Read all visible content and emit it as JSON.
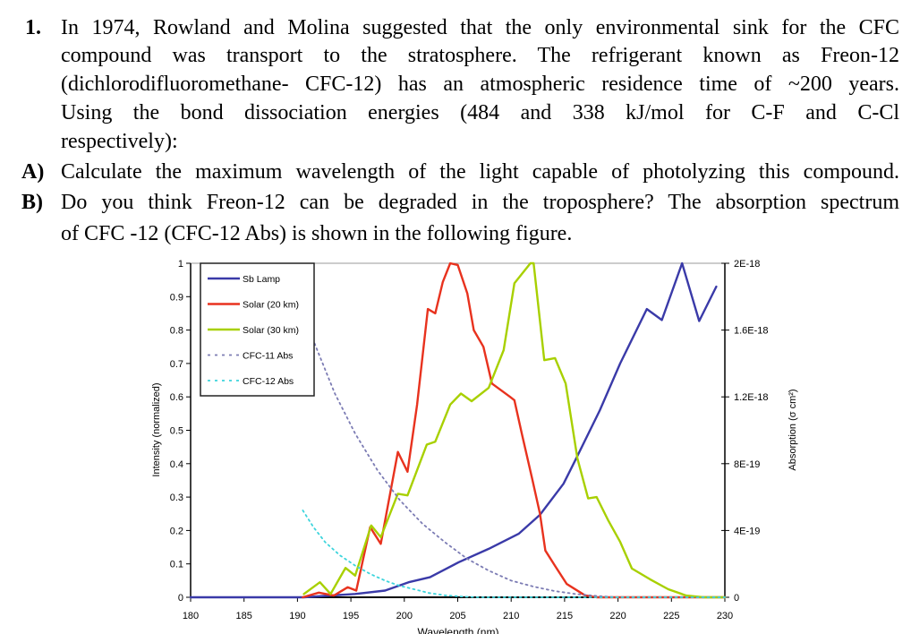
{
  "question": {
    "number": "1.",
    "intro_lines": [
      "In 1974, Rowland and Molina suggested that the only environmental sink for the CFC",
      "compound was transport to the stratosphere. The refrigerant known as Freon-12",
      "(dichlorodifluoromethane- CFC-12) has an atmospheric residence time of ~200 years.",
      "Using the bond dissociation energies (484 and 338 kJ/mol for C-F and C-Cl",
      "respectively):"
    ],
    "part_a_label": "A)",
    "part_a_lines": [
      "Calculate the maximum wavelength of the light capable of photolyzing this compound."
    ],
    "part_b_label": "B)",
    "part_b_lines": [
      "Do you think Freon-12 can be degraded in the troposphere? The absorption spectrum",
      "of CFC -12 (CFC-12 Abs) is shown in the following figure."
    ]
  },
  "chart_data": {
    "type": "line",
    "title": "",
    "xlabel": "Wavelength (nm)",
    "ylabel": "Intensity (normalized)",
    "y2label": "Absorption (σ cm²)",
    "xlim": [
      180,
      230
    ],
    "ylim": [
      0,
      1
    ],
    "y2lim": [
      0,
      2e-18
    ],
    "xticks": [
      "180",
      "185",
      "190",
      "195",
      "200",
      "205",
      "210",
      "215",
      "220",
      "225",
      "230"
    ],
    "yticks": [
      "0",
      "0.1",
      "0.2",
      "0.3",
      "0.4",
      "0.5",
      "0.6",
      "0.7",
      "0.8",
      "0.9",
      "1"
    ],
    "y2ticks": [
      "0",
      "4E-19",
      "8E-19",
      "1.2E-18",
      "1.6E-18",
      "2E-18"
    ],
    "grid": false,
    "legend_placement": "top-left",
    "series": [
      {
        "name": "Sb Lamp",
        "axis": "left",
        "color": "#3a3aa8",
        "style": "solid",
        "x": [
          180,
          190,
          190.6,
          195.4,
          198.2,
          200.4,
          202.4,
          205.1,
          207.9,
          210.7,
          212.7,
          214.9,
          216,
          218.3,
          220.2,
          222.7,
          224.1,
          226,
          227.6,
          229.2
        ],
        "y": [
          0,
          0,
          0,
          0.01,
          0.02,
          0.045,
          0.06,
          0.105,
          0.145,
          0.19,
          0.247,
          0.34,
          0.41,
          0.56,
          0.7,
          0.863,
          0.83,
          1.0,
          0.827,
          0.93
        ]
      },
      {
        "name": "Solar (20 km)",
        "axis": "left",
        "color": "#e8321e",
        "style": "solid",
        "x": [
          190.5,
          192,
          193.4,
          194.7,
          195.5,
          196.8,
          197.8,
          199.4,
          200.3,
          201.2,
          202.2,
          202.9,
          203.6,
          204.3,
          205,
          205.9,
          206.5,
          207.4,
          208.2,
          209.9,
          210.3,
          211,
          212,
          212.7,
          213.2,
          214.1,
          215.2,
          216.9,
          218,
          230
        ],
        "y": [
          0,
          0.014,
          0.005,
          0.03,
          0.02,
          0.21,
          0.16,
          0.435,
          0.376,
          0.577,
          0.863,
          0.85,
          0.944,
          1.0,
          0.995,
          0.91,
          0.8,
          0.75,
          0.64,
          0.6,
          0.59,
          0.49,
          0.35,
          0.25,
          0.14,
          0.094,
          0.04,
          0.006,
          0,
          0
        ]
      },
      {
        "name": "Solar (30 km)",
        "axis": "left",
        "color": "#a8d000",
        "style": "solid",
        "x": [
          190.6,
          192.1,
          193.1,
          194.5,
          195.4,
          196.9,
          197.8,
          199.4,
          200.3,
          202.1,
          202.9,
          204.3,
          205.3,
          206.3,
          207.9,
          209.3,
          210.3,
          211.8,
          212.1,
          213.1,
          214.1,
          215.1,
          216.2,
          217.2,
          218,
          219.1,
          220.2,
          221.3,
          223,
          224.7,
          226.4,
          228,
          230
        ],
        "y": [
          0.01,
          0.045,
          0.01,
          0.088,
          0.065,
          0.215,
          0.18,
          0.31,
          0.305,
          0.457,
          0.466,
          0.577,
          0.61,
          0.587,
          0.627,
          0.74,
          0.94,
          1.0,
          1.0,
          0.71,
          0.716,
          0.64,
          0.416,
          0.296,
          0.3,
          0.229,
          0.166,
          0.086,
          0.054,
          0.024,
          0.005,
          0,
          0
        ]
      },
      {
        "name": "CFC-11 Abs",
        "axis": "right",
        "color": "#7c7cb4",
        "style": "dotted",
        "x": [
          191.6,
          193.5,
          195.4,
          197.5,
          199.6,
          201.7,
          203.8,
          205.9,
          207.9,
          210,
          212.1,
          214,
          216,
          218,
          220,
          230
        ],
        "y": [
          1.52e-18,
          1.22e-18,
          9.8e-19,
          7.6e-19,
          5.8e-19,
          4.4e-19,
          3.3e-19,
          2.3e-19,
          1.6e-19,
          1e-19,
          6.4e-20,
          3.8e-20,
          2e-20,
          8e-21,
          0,
          0
        ]
      },
      {
        "name": "CFC-12 Abs",
        "axis": "right",
        "color": "#3cd4dc",
        "style": "dotted",
        "x": [
          190.5,
          191.5,
          192.6,
          194,
          195.4,
          196.8,
          198.2,
          199.5,
          200.9,
          202.3,
          203.8,
          205.5,
          207,
          230
        ],
        "y": [
          5.2e-19,
          4.2e-19,
          3.3e-19,
          2.5e-19,
          1.9e-19,
          1.4e-19,
          1e-19,
          7e-20,
          4.8e-20,
          2.6e-20,
          1.2e-20,
          4e-21,
          0,
          0
        ]
      }
    ]
  }
}
